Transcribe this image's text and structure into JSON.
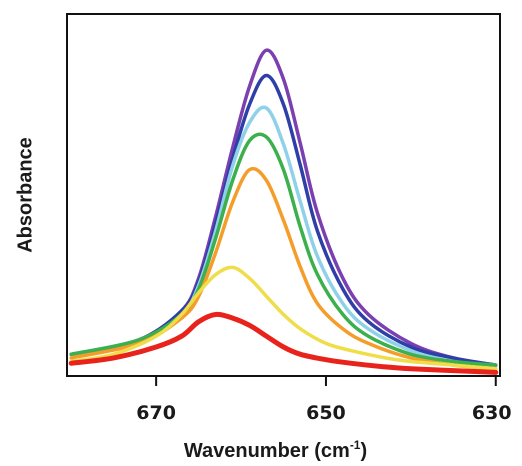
{
  "chart_data": {
    "type": "line",
    "xlabel": "Wavenumber (cm",
    "xlabel_sup": "-1",
    "xlabel_close": ")",
    "ylabel": "Absorbance",
    "x_reversed": true,
    "xlim": [
      680.5,
      629.5
    ],
    "ylim": [
      0,
      1
    ],
    "grid": false,
    "legend": "none",
    "y_ticks_labeled": false,
    "x_ticks": [
      {
        "value": 670,
        "label": "670"
      },
      {
        "value": 650,
        "label": "650"
      },
      {
        "value": 630,
        "label": "630"
      }
    ],
    "series": [
      {
        "color": "#7a3fb0",
        "x": [
          680,
          672,
          667,
          665,
          663,
          661,
          659,
          657,
          655,
          653,
          651,
          648,
          645,
          640,
          635,
          630
        ],
        "y": [
          0.06,
          0.1,
          0.18,
          0.27,
          0.44,
          0.63,
          0.8,
          0.9,
          0.82,
          0.64,
          0.45,
          0.27,
          0.17,
          0.09,
          0.05,
          0.03
        ]
      },
      {
        "color": "#2e3fa8",
        "x": [
          680,
          672,
          667,
          665,
          663,
          661,
          659,
          657,
          655,
          653,
          651,
          648,
          645,
          640,
          635,
          630
        ],
        "y": [
          0.06,
          0.1,
          0.18,
          0.26,
          0.42,
          0.6,
          0.75,
          0.83,
          0.75,
          0.58,
          0.4,
          0.24,
          0.15,
          0.08,
          0.05,
          0.03
        ]
      },
      {
        "color": "#8fd1e8",
        "x": [
          680,
          672,
          667,
          665,
          663,
          661,
          659,
          657,
          655,
          653,
          651,
          648,
          645,
          640,
          635,
          630
        ],
        "y": [
          0.06,
          0.1,
          0.17,
          0.25,
          0.4,
          0.58,
          0.7,
          0.74,
          0.64,
          0.48,
          0.33,
          0.2,
          0.13,
          0.07,
          0.04,
          0.03
        ]
      },
      {
        "color": "#3bb04c",
        "x": [
          680,
          672,
          667,
          665,
          663,
          661,
          659,
          657,
          655,
          653,
          651,
          648,
          645,
          640,
          635,
          630
        ],
        "y": [
          0.06,
          0.1,
          0.17,
          0.24,
          0.38,
          0.54,
          0.65,
          0.66,
          0.57,
          0.41,
          0.28,
          0.17,
          0.11,
          0.06,
          0.04,
          0.03
        ]
      },
      {
        "color": "#f59d2a",
        "x": [
          680,
          672,
          667,
          665,
          663,
          661,
          659,
          657,
          655,
          653,
          651,
          648,
          645,
          640,
          635,
          630
        ],
        "y": [
          0.05,
          0.09,
          0.16,
          0.22,
          0.34,
          0.48,
          0.57,
          0.54,
          0.43,
          0.3,
          0.2,
          0.13,
          0.09,
          0.05,
          0.03,
          0.02
        ]
      },
      {
        "color": "#f0dd4a",
        "x": [
          680,
          675,
          670,
          667,
          665,
          663,
          661,
          659,
          657,
          655,
          653,
          650,
          647,
          643,
          640,
          635,
          630
        ],
        "y": [
          0.04,
          0.06,
          0.11,
          0.17,
          0.23,
          0.28,
          0.3,
          0.27,
          0.22,
          0.17,
          0.13,
          0.09,
          0.07,
          0.05,
          0.04,
          0.03,
          0.02
        ]
      },
      {
        "color": "#e8231c",
        "x": [
          680,
          675,
          670,
          667,
          665,
          663,
          661,
          659,
          657,
          655,
          653,
          650,
          647,
          643,
          640,
          635,
          630
        ],
        "y": [
          0.035,
          0.05,
          0.08,
          0.11,
          0.15,
          0.17,
          0.16,
          0.14,
          0.11,
          0.08,
          0.06,
          0.045,
          0.035,
          0.025,
          0.02,
          0.015,
          0.01
        ]
      }
    ]
  }
}
